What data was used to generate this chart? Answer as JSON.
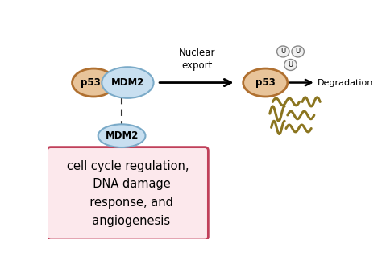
{
  "fig_width": 4.74,
  "fig_height": 3.34,
  "dpi": 100,
  "bg_color": "#ffffff",
  "p53_face_color": "#e8c49a",
  "p53_edge_color": "#b07030",
  "mdm2_face_color": "#c8dff0",
  "mdm2_edge_color": "#7aaac8",
  "p53_right_face_color": "#e8c49a",
  "p53_right_edge_color": "#b07030",
  "ubiquitin_face_color": "#f0f0f0",
  "ubiquitin_edge_color": "#888888",
  "wavy_color": "#8b7520",
  "box_bg_color": "#fce8ec",
  "box_edge_color": "#c0405a",
  "arrow_color": "#000000",
  "text_color": "#000000",
  "nuclear_export_text": "Nuclear\nexport",
  "degradation_text": "Degradation",
  "box_text": "cell cycle regulation,\n  DNA damage\n  response, and\n  angiogenesis",
  "p53_label": "p53",
  "mdm2_label": "MDM2",
  "mdm2_bottom_label": "MDM2",
  "p53_right_label": "p53"
}
